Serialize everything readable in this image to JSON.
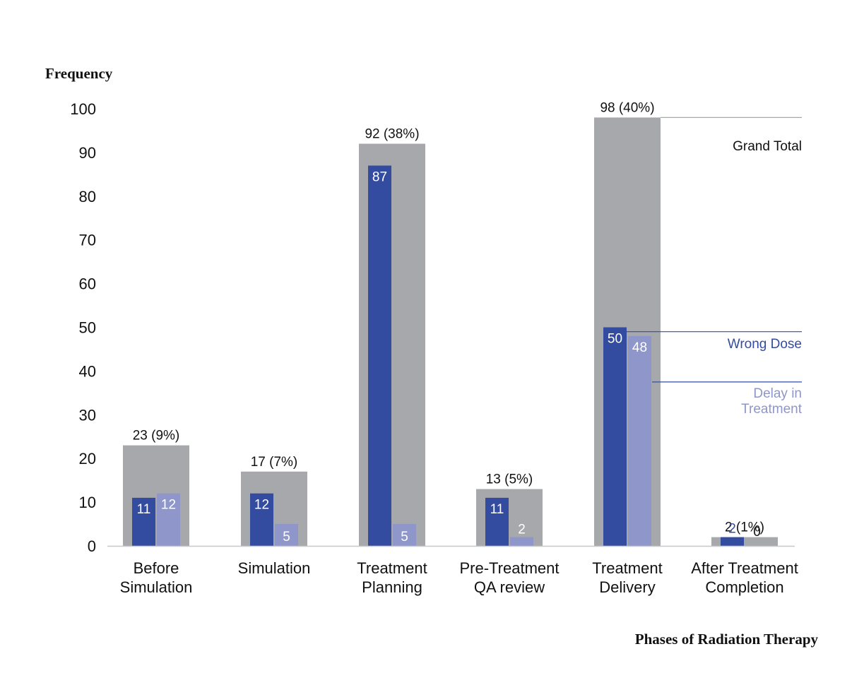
{
  "chart_data": {
    "type": "bar",
    "ylabel": "Frequency",
    "xlabel": "Phases of Radiation Therapy",
    "ylim": [
      0,
      100
    ],
    "yticks": [
      0,
      10,
      20,
      30,
      40,
      50,
      60,
      70,
      80,
      90,
      100
    ],
    "categories": [
      [
        "Before",
        "Simulation"
      ],
      [
        "Simulation"
      ],
      [
        "Treatment",
        "Planning"
      ],
      [
        "Pre-Treatment",
        "QA review"
      ],
      [
        "Treatment",
        "Delivery"
      ],
      [
        "After Treatment",
        "Completion"
      ]
    ],
    "series": [
      {
        "name": "Grand Total",
        "values": [
          23,
          17,
          92,
          13,
          98,
          2
        ],
        "labels": [
          "23 (9%)",
          "17 (7%)",
          "92 (38%)",
          "13 (5%)",
          "98 (40%)",
          "2 (1%)"
        ]
      },
      {
        "name": "Wrong Dose",
        "values": [
          11,
          12,
          87,
          11,
          50,
          2
        ],
        "labels": [
          "11",
          "12",
          "87",
          "11",
          "50",
          "2"
        ]
      },
      {
        "name": "Delay in Treatment",
        "values": [
          12,
          5,
          5,
          2,
          48,
          0
        ],
        "labels": [
          "12",
          "5",
          "5",
          "2",
          "48",
          "0"
        ]
      }
    ],
    "legend": [
      {
        "series": "Grand Total",
        "lines": [
          "Grand Total"
        ]
      },
      {
        "series": "Wrong Dose",
        "lines": [
          "Wrong Dose"
        ]
      },
      {
        "series": "Delay in Treatment",
        "lines": [
          "Delay in",
          "Treatment"
        ]
      }
    ],
    "legend_placement": "right, inline with Treatment Delivery bars",
    "grid": false,
    "colors": {
      "total": "#a7a8ab",
      "wrong_dose": "#344c9f",
      "delay": "#8f96c9",
      "axis": "#c8c8c8",
      "text": "#111111"
    }
  }
}
